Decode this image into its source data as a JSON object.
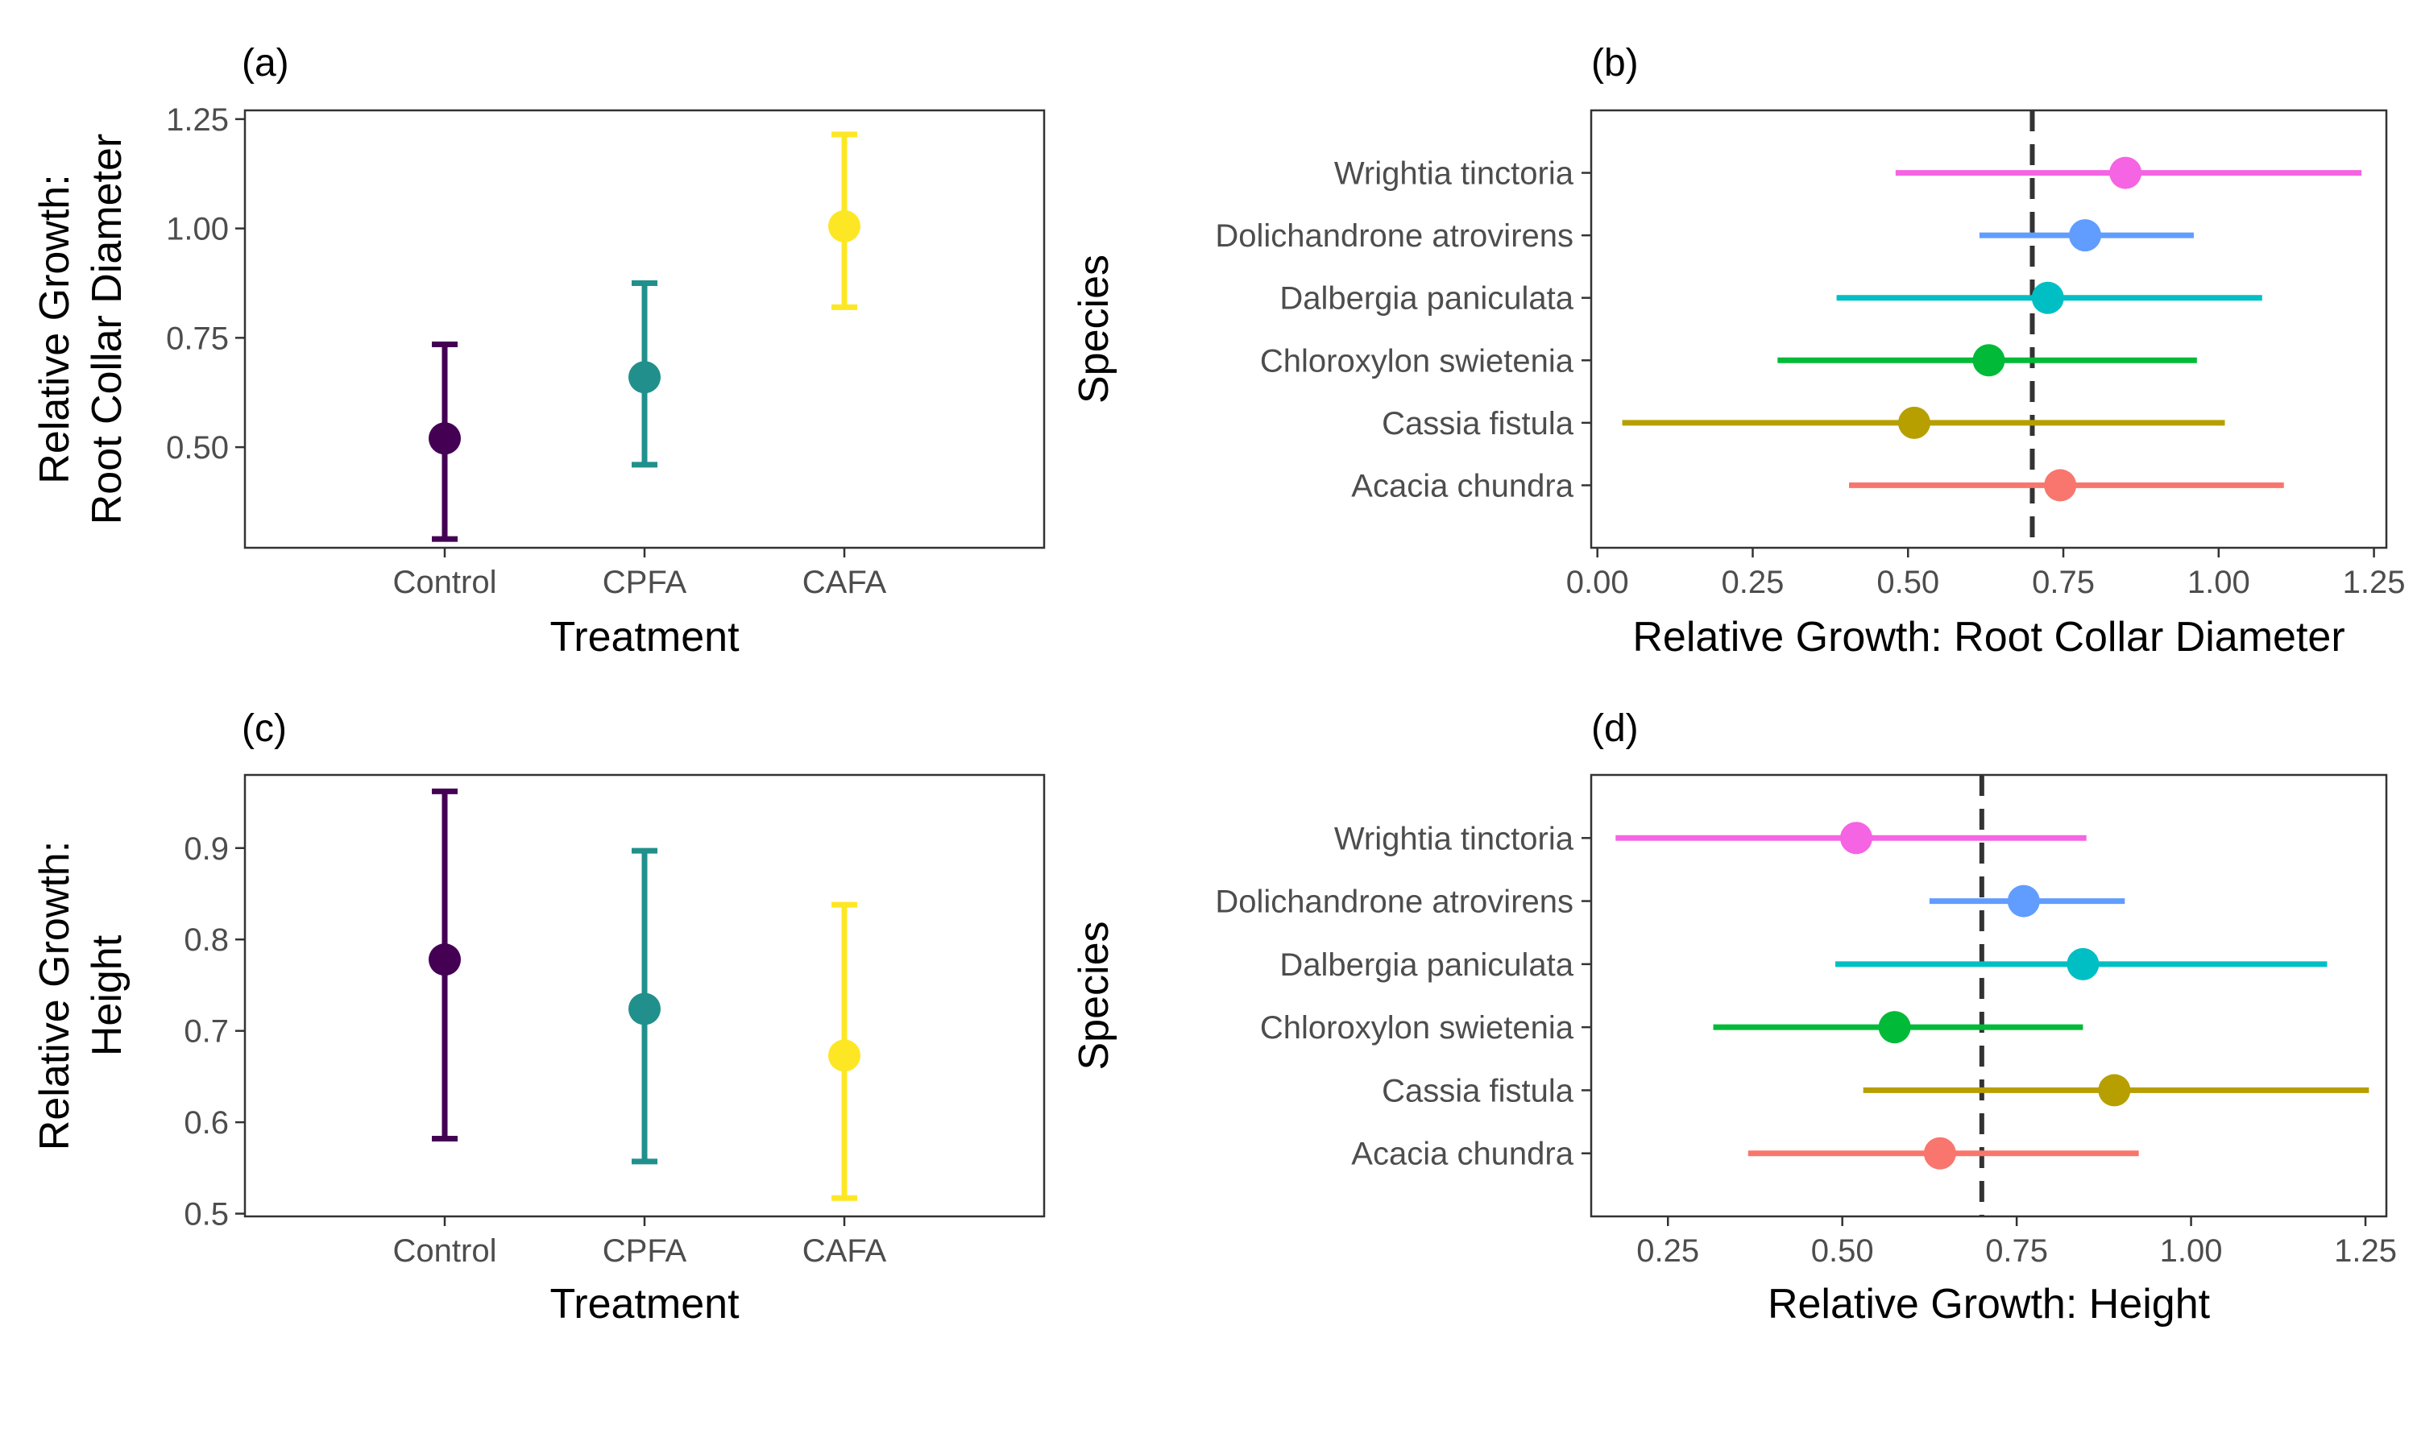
{
  "chart_data": [
    {
      "panel": "(a)",
      "type": "errorbar",
      "orientation": "vertical",
      "xlabel": "Treatment",
      "ylabel": [
        "Relative Growth:",
        "Root Collar Diameter"
      ],
      "categories": [
        "Control",
        "CPFA",
        "CAFA"
      ],
      "values": [
        0.52,
        0.66,
        1.005
      ],
      "lower": [
        0.29,
        0.46,
        0.82
      ],
      "upper": [
        0.735,
        0.875,
        1.215
      ],
      "colors": [
        "#440154",
        "#21908C",
        "#FDE725"
      ],
      "ylim": [
        0.27,
        1.27
      ],
      "yticks": [
        0.5,
        0.75,
        1.0,
        1.25
      ],
      "ytick_labels": [
        "0.50",
        "0.75",
        "1.00",
        "1.25"
      ]
    },
    {
      "panel": "(b)",
      "type": "errorbar",
      "orientation": "horizontal",
      "xlabel": "Relative Growth: Root Collar Diameter",
      "ylabel": "Species",
      "categories": [
        "Acacia chundra",
        "Cassia fistula",
        "Chloroxylon swietenia",
        "Dalbergia paniculata",
        "Dolichandrone atrovirens",
        "Wrightia tinctoria"
      ],
      "values": [
        0.745,
        0.51,
        0.63,
        0.725,
        0.785,
        0.85
      ],
      "lower": [
        0.405,
        0.04,
        0.29,
        0.385,
        0.615,
        0.48
      ],
      "upper": [
        1.105,
        1.01,
        0.965,
        1.07,
        0.96,
        1.23
      ],
      "colors": [
        "#F8766D",
        "#B79F00",
        "#00BA38",
        "#00BFC4",
        "#619CFF",
        "#F564E3"
      ],
      "reference_line": 0.7,
      "xlim": [
        -0.01,
        1.27
      ],
      "xticks": [
        0,
        0.25,
        0.5,
        0.75,
        1,
        1.25
      ],
      "xtick_labels": [
        "0.00",
        "0.25",
        "0.50",
        "0.75",
        "1.00",
        "1.25"
      ]
    },
    {
      "panel": "(c)",
      "type": "errorbar",
      "orientation": "vertical",
      "xlabel": "Treatment",
      "ylabel": [
        "Relative Growth:",
        "Height"
      ],
      "categories": [
        "Control",
        "CPFA",
        "CAFA"
      ],
      "values": [
        0.778,
        0.724,
        0.673
      ],
      "lower": [
        0.582,
        0.557,
        0.517
      ],
      "upper": [
        0.962,
        0.897,
        0.838
      ],
      "colors": [
        "#440154",
        "#21908C",
        "#FDE725"
      ],
      "ylim": [
        0.497,
        0.98
      ],
      "yticks": [
        0.5,
        0.6,
        0.7,
        0.8,
        0.9
      ],
      "ytick_labels": [
        "0.5",
        "0.6",
        "0.7",
        "0.8",
        "0.9"
      ]
    },
    {
      "panel": "(d)",
      "type": "errorbar",
      "orientation": "horizontal",
      "xlabel": "Relative Growth: Height",
      "ylabel": "Species",
      "categories": [
        "Acacia chundra",
        "Cassia fistula",
        "Chloroxylon swietenia",
        "Dalbergia paniculata",
        "Dolichandrone atrovirens",
        "Wrightia tinctoria"
      ],
      "values": [
        0.64,
        0.89,
        0.575,
        0.845,
        0.76,
        0.52
      ],
      "lower": [
        0.365,
        0.53,
        0.315,
        0.49,
        0.625,
        0.175
      ],
      "upper": [
        0.925,
        1.255,
        0.845,
        1.195,
        0.905,
        0.85
      ],
      "colors": [
        "#F8766D",
        "#B79F00",
        "#00BA38",
        "#00BFC4",
        "#619CFF",
        "#F564E3"
      ],
      "reference_line": 0.7,
      "xlim": [
        0.14,
        1.28
      ],
      "xticks": [
        0.25,
        0.5,
        0.75,
        1,
        1.25
      ],
      "xtick_labels": [
        "0.25",
        "0.50",
        "0.75",
        "1.00",
        "1.25"
      ]
    }
  ]
}
